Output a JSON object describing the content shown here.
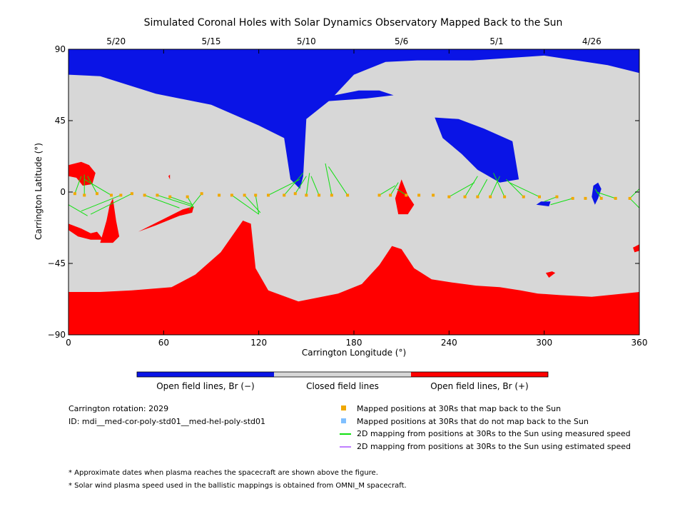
{
  "chart_data": {
    "type": "map",
    "title": "Simulated Coronal Holes with Solar Dynamics Observatory Mapped Back to the Sun",
    "xlabel": "Carrington Longitude (°)",
    "ylabel": "Carrington Latitude (°)",
    "xlim": [
      0,
      360
    ],
    "ylim": [
      -90,
      90
    ],
    "x_ticks": [
      "0",
      "60",
      "120",
      "180",
      "240",
      "300",
      "360"
    ],
    "y_ticks": [
      "90",
      "45",
      "0",
      "-45",
      "-90"
    ],
    "top_dates": [
      {
        "label": "5/20",
        "lon": 30
      },
      {
        "label": "5/15",
        "lon": 90
      },
      {
        "label": "5/10",
        "lon": 150
      },
      {
        "label": "5/6",
        "lon": 210
      },
      {
        "label": "5/1",
        "lon": 270
      },
      {
        "label": "4/26",
        "lon": 330
      }
    ],
    "colors": {
      "open_negative": "#0a14e6",
      "closed": "#d7d7d7",
      "open_positive": "#ff0000",
      "mapped": "#f0a800",
      "unmapped": "#80c0ff",
      "measured_line": "#10e010",
      "estimated_line": "#c080ff"
    },
    "colorbar": [
      {
        "label": "Open field lines, Br (−)",
        "color": "#0a14e6"
      },
      {
        "label": "Closed field lines",
        "color": "#d7d7d7"
      },
      {
        "label": "Open field lines, Br (+)",
        "color": "#ff0000"
      }
    ],
    "regions": {
      "north_open_negative": [
        [
          0,
          90
        ],
        [
          360,
          90
        ],
        [
          360,
          75
        ],
        [
          340,
          80
        ],
        [
          300,
          86
        ],
        [
          255,
          83
        ],
        [
          220,
          83
        ],
        [
          200,
          82
        ],
        [
          180,
          74
        ],
        [
          165,
          58
        ],
        [
          150,
          46
        ],
        [
          148,
          10
        ],
        [
          146,
          2
        ],
        [
          140,
          8
        ],
        [
          136,
          34
        ],
        [
          120,
          42
        ],
        [
          90,
          55
        ],
        [
          55,
          62
        ],
        [
          20,
          73
        ],
        [
          0,
          74
        ]
      ],
      "north_negative_hole_260": [
        [
          231,
          47
        ],
        [
          246,
          46
        ],
        [
          262,
          40
        ],
        [
          280,
          32
        ],
        [
          284,
          8
        ],
        [
          272,
          6
        ],
        [
          258,
          14
        ],
        [
          248,
          24
        ],
        [
          236,
          34
        ]
      ],
      "north_negative_neck": [
        [
          140,
          58
        ],
        [
          150,
          60
        ],
        [
          168,
          61
        ],
        [
          183,
          64
        ],
        [
          196,
          64
        ],
        [
          205,
          61
        ],
        [
          188,
          59
        ],
        [
          160,
          57
        ]
      ],
      "north_negative_blob_330": [
        [
          332,
          -8
        ],
        [
          334,
          -4
        ],
        [
          336,
          2
        ],
        [
          334,
          6
        ],
        [
          331,
          4
        ],
        [
          330,
          -3
        ]
      ],
      "north_negative_blob_300": [
        [
          295,
          -8
        ],
        [
          303,
          -9
        ],
        [
          304,
          -6
        ],
        [
          298,
          -6
        ]
      ],
      "south_open_positive": [
        [
          0,
          -90
        ],
        [
          360,
          -90
        ],
        [
          360,
          -63
        ],
        [
          330,
          -66
        ],
        [
          310,
          -65
        ],
        [
          296,
          -64
        ],
        [
          285,
          -62
        ],
        [
          272,
          -60
        ],
        [
          257,
          -59
        ],
        [
          242,
          -57
        ],
        [
          229,
          -55
        ],
        [
          218,
          -48
        ],
        [
          210,
          -36
        ],
        [
          204,
          -34
        ],
        [
          196,
          -46
        ],
        [
          185,
          -58
        ],
        [
          170,
          -64
        ],
        [
          145,
          -69
        ],
        [
          126,
          -62
        ],
        [
          118,
          -48
        ],
        [
          115,
          -20
        ],
        [
          110,
          -18
        ],
        [
          96,
          -38
        ],
        [
          80,
          -52
        ],
        [
          65,
          -60
        ],
        [
          40,
          -62
        ],
        [
          20,
          -63
        ],
        [
          0,
          -63
        ]
      ],
      "pos_hole_0_20": [
        [
          0,
          17
        ],
        [
          8,
          19
        ],
        [
          13,
          17
        ],
        [
          17,
          12
        ],
        [
          15,
          5
        ],
        [
          9,
          4
        ],
        [
          5,
          9
        ],
        [
          0,
          10
        ]
      ],
      "pos_hole_15_left": [
        [
          0,
          -20
        ],
        [
          8,
          -23
        ],
        [
          14,
          -26
        ],
        [
          18,
          -25
        ],
        [
          22,
          -30
        ],
        [
          14,
          -30
        ],
        [
          6,
          -28
        ],
        [
          0,
          -24
        ]
      ],
      "pos_hole_wedge": [
        [
          44,
          -25
        ],
        [
          58,
          -18
        ],
        [
          72,
          -11
        ],
        [
          79,
          -9
        ],
        [
          78,
          -13
        ],
        [
          70,
          -15
        ],
        [
          55,
          -21
        ]
      ],
      "pos_hole_vertical": [
        [
          20,
          -32
        ],
        [
          24,
          -18
        ],
        [
          26,
          -8
        ],
        [
          28,
          -4
        ],
        [
          30,
          -18
        ],
        [
          32,
          -28
        ],
        [
          28,
          -32
        ]
      ],
      "pos_hole_210": [
        [
          206,
          -4
        ],
        [
          210,
          8
        ],
        [
          212,
          3
        ],
        [
          214,
          -2
        ],
        [
          218,
          -8
        ],
        [
          214,
          -14
        ],
        [
          208,
          -14
        ]
      ],
      "pos_hole_360": [
        [
          356,
          -35
        ],
        [
          360,
          -33
        ],
        [
          360,
          -37
        ],
        [
          357,
          -38
        ]
      ],
      "pos_hole_300": [
        [
          301,
          -51
        ],
        [
          305,
          -50
        ],
        [
          307,
          -51
        ],
        [
          303,
          -54
        ]
      ],
      "pos_hole_60": [
        [
          63,
          10
        ],
        [
          64,
          11
        ],
        [
          64,
          8
        ]
      ]
    },
    "mapped_points": [
      {
        "lon": 4,
        "lat": -1
      },
      {
        "lon": 10,
        "lat": -2
      },
      {
        "lon": 18,
        "lat": -1
      },
      {
        "lon": 27,
        "lat": -2
      },
      {
        "lon": 33,
        "lat": -2
      },
      {
        "lon": 40,
        "lat": -1
      },
      {
        "lon": 48,
        "lat": -2
      },
      {
        "lon": 56,
        "lat": -2
      },
      {
        "lon": 64,
        "lat": -3
      },
      {
        "lon": 75,
        "lat": -3
      },
      {
        "lon": 84,
        "lat": -1
      },
      {
        "lon": 95,
        "lat": -2
      },
      {
        "lon": 103,
        "lat": -2
      },
      {
        "lon": 111,
        "lat": -2
      },
      {
        "lon": 118,
        "lat": -2
      },
      {
        "lon": 126,
        "lat": -2
      },
      {
        "lon": 136,
        "lat": -2
      },
      {
        "lon": 143,
        "lat": -1
      },
      {
        "lon": 150,
        "lat": -2
      },
      {
        "lon": 158,
        "lat": -2
      },
      {
        "lon": 166,
        "lat": -2
      },
      {
        "lon": 176,
        "lat": -2
      },
      {
        "lon": 196,
        "lat": -2
      },
      {
        "lon": 203,
        "lat": -2
      },
      {
        "lon": 213,
        "lat": -2
      },
      {
        "lon": 221,
        "lat": -2
      },
      {
        "lon": 230,
        "lat": -2
      },
      {
        "lon": 240,
        "lat": -3
      },
      {
        "lon": 250,
        "lat": -3
      },
      {
        "lon": 258,
        "lat": -3
      },
      {
        "lon": 266,
        "lat": -3
      },
      {
        "lon": 275,
        "lat": -3
      },
      {
        "lon": 287,
        "lat": -3
      },
      {
        "lon": 297,
        "lat": -3
      },
      {
        "lon": 308,
        "lat": -3
      },
      {
        "lon": 318,
        "lat": -4
      },
      {
        "lon": 326,
        "lat": -4
      },
      {
        "lon": 336,
        "lat": -4
      },
      {
        "lon": 345,
        "lat": -4
      },
      {
        "lon": 354,
        "lat": -4
      }
    ],
    "mapping_lines": [
      {
        "from": [
          4,
          -1
        ],
        "to": [
          8,
          10
        ]
      },
      {
        "from": [
          10,
          -2
        ],
        "to": [
          10,
          11
        ]
      },
      {
        "from": [
          18,
          -1
        ],
        "to": [
          12,
          10
        ]
      },
      {
        "from": [
          27,
          -2
        ],
        "to": [
          10,
          8
        ]
      },
      {
        "from": [
          0,
          -8
        ],
        "to": [
          12,
          -15
        ]
      },
      {
        "from": [
          40,
          -1
        ],
        "to": [
          14,
          -14
        ]
      },
      {
        "from": [
          33,
          -2
        ],
        "to": [
          8,
          -12
        ]
      },
      {
        "from": [
          56,
          -2
        ],
        "to": [
          78,
          -9
        ]
      },
      {
        "from": [
          64,
          -3
        ],
        "to": [
          78,
          -8
        ]
      },
      {
        "from": [
          75,
          -3
        ],
        "to": [
          79,
          -10
        ]
      },
      {
        "from": [
          84,
          -1
        ],
        "to": [
          76,
          -11
        ]
      },
      {
        "from": [
          48,
          -2
        ],
        "to": [
          70,
          -10
        ]
      },
      {
        "from": [
          103,
          -2
        ],
        "to": [
          120,
          -14
        ]
      },
      {
        "from": [
          111,
          -2
        ],
        "to": [
          121,
          -13
        ]
      },
      {
        "from": [
          118,
          -2
        ],
        "to": [
          120,
          -14
        ]
      },
      {
        "from": [
          126,
          -2
        ],
        "to": [
          146,
          8
        ]
      },
      {
        "from": [
          136,
          -2
        ],
        "to": [
          148,
          12
        ]
      },
      {
        "from": [
          143,
          -1
        ],
        "to": [
          150,
          10
        ]
      },
      {
        "from": [
          150,
          -2
        ],
        "to": [
          152,
          12
        ]
      },
      {
        "from": [
          158,
          -2
        ],
        "to": [
          153,
          10
        ]
      },
      {
        "from": [
          166,
          -2
        ],
        "to": [
          162,
          18
        ]
      },
      {
        "from": [
          176,
          -2
        ],
        "to": [
          164,
          16
        ]
      },
      {
        "from": [
          196,
          -2
        ],
        "to": [
          206,
          4
        ]
      },
      {
        "from": [
          203,
          -2
        ],
        "to": [
          208,
          6
        ]
      },
      {
        "from": [
          213,
          -2
        ],
        "to": [
          207,
          2
        ]
      },
      {
        "from": [
          240,
          -3
        ],
        "to": [
          256,
          6
        ]
      },
      {
        "from": [
          250,
          -3
        ],
        "to": [
          258,
          10
        ]
      },
      {
        "from": [
          258,
          -3
        ],
        "to": [
          264,
          8
        ]
      },
      {
        "from": [
          266,
          -3
        ],
        "to": [
          272,
          10
        ]
      },
      {
        "from": [
          275,
          -3
        ],
        "to": [
          268,
          12
        ]
      },
      {
        "from": [
          287,
          -3
        ],
        "to": [
          276,
          8
        ]
      },
      {
        "from": [
          297,
          -3
        ],
        "to": [
          278,
          6
        ]
      },
      {
        "from": [
          308,
          -3
        ],
        "to": [
          300,
          -6
        ]
      },
      {
        "from": [
          318,
          -4
        ],
        "to": [
          304,
          -8
        ]
      },
      {
        "from": [
          336,
          -4
        ],
        "to": [
          332,
          2
        ]
      },
      {
        "from": [
          345,
          -4
        ],
        "to": [
          333,
          0
        ]
      },
      {
        "from": [
          354,
          -4
        ],
        "to": [
          360,
          2
        ]
      },
      {
        "from": [
          354,
          -4
        ],
        "to": [
          360,
          -10
        ]
      }
    ],
    "legend": [
      {
        "kind": "square",
        "color": "#f0a800",
        "label": "Mapped positions at 30Rs that map back to the Sun"
      },
      {
        "kind": "square",
        "color": "#80c0ff",
        "label": "Mapped positions at 30Rs that do not map back to the Sun"
      },
      {
        "kind": "line",
        "color": "#10e010",
        "label": "2D mapping from positions at 30Rs to the Sun using measured speed"
      },
      {
        "kind": "line",
        "color": "#c080ff",
        "label": "2D mapping from positions at 30Rs to the Sun using estimated speed"
      }
    ]
  },
  "info": {
    "rotation": "Carrington rotation: 2029",
    "id": "ID: mdi__med-cor-poly-std01__med-hel-poly-std01"
  },
  "notes": [
    "* Approximate dates when plasma reaches the spacecraft are shown above the figure.",
    "* Solar wind plasma speed used in the ballistic mappings is obtained from OMNI_M spacecraft."
  ]
}
